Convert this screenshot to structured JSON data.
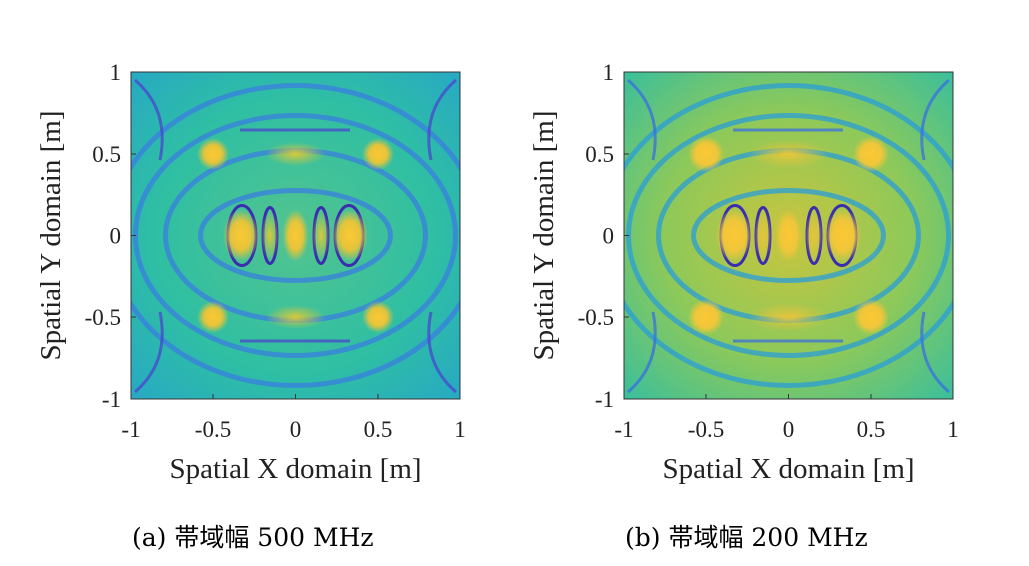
{
  "chart_data": [
    {
      "type": "heatmap",
      "xlabel": "Spatial X domain [m]",
      "ylabel": "Spatial Y domain [m]",
      "xlim": [
        -1,
        1
      ],
      "ylim": [
        -1,
        1
      ],
      "xticks": [
        "-1",
        "-0.5",
        "0",
        "0.5",
        "1"
      ],
      "yticks": [
        "1",
        "0.5",
        "0",
        "-0.5",
        "-1"
      ],
      "caption": "(a) 帯域幅 500 MHz",
      "colormap": "parula",
      "grid": false,
      "hotspots": [
        {
          "x": -0.33,
          "y": 0,
          "level": 1.0
        },
        {
          "x": 0.33,
          "y": 0,
          "level": 1.0
        },
        {
          "x": 0,
          "y": 0,
          "level": 0.95
        },
        {
          "x": -0.15,
          "y": 0,
          "level": 0.85
        },
        {
          "x": 0.15,
          "y": 0,
          "level": 0.85
        },
        {
          "x": -0.5,
          "y": 0.5,
          "level": 0.85
        },
        {
          "x": 0.5,
          "y": 0.5,
          "level": 0.85
        },
        {
          "x": -0.5,
          "y": -0.5,
          "level": 0.85
        },
        {
          "x": 0.5,
          "y": -0.5,
          "level": 0.85
        }
      ]
    },
    {
      "type": "heatmap",
      "xlabel": "Spatial X domain [m]",
      "ylabel": "Spatial Y domain [m]",
      "xlim": [
        -1,
        1
      ],
      "ylim": [
        -1,
        1
      ],
      "xticks": [
        "-1",
        "-0.5",
        "0",
        "0.5",
        "1"
      ],
      "yticks": [
        "1",
        "0.5",
        "0",
        "-0.5",
        "-1"
      ],
      "caption": "(b) 帯域幅 200 MHz",
      "colormap": "parula",
      "grid": false,
      "hotspots": [
        {
          "x": -0.33,
          "y": 0,
          "level": 1.0
        },
        {
          "x": 0.33,
          "y": 0,
          "level": 1.0
        },
        {
          "x": 0,
          "y": 0,
          "level": 0.95
        },
        {
          "x": -0.15,
          "y": 0,
          "level": 0.85
        },
        {
          "x": 0.15,
          "y": 0,
          "level": 0.85
        },
        {
          "x": -0.5,
          "y": 0.5,
          "level": 0.85
        },
        {
          "x": 0.5,
          "y": 0.5,
          "level": 0.85
        },
        {
          "x": -0.5,
          "y": -0.5,
          "level": 0.85
        },
        {
          "x": 0.5,
          "y": -0.5,
          "level": 0.85
        }
      ]
    }
  ],
  "colors": {
    "dark": "#3b2cb0",
    "low": "#2a7ef0",
    "mid": "#1fc4a8",
    "high": "#a8c93a",
    "peak": "#fbc835"
  }
}
